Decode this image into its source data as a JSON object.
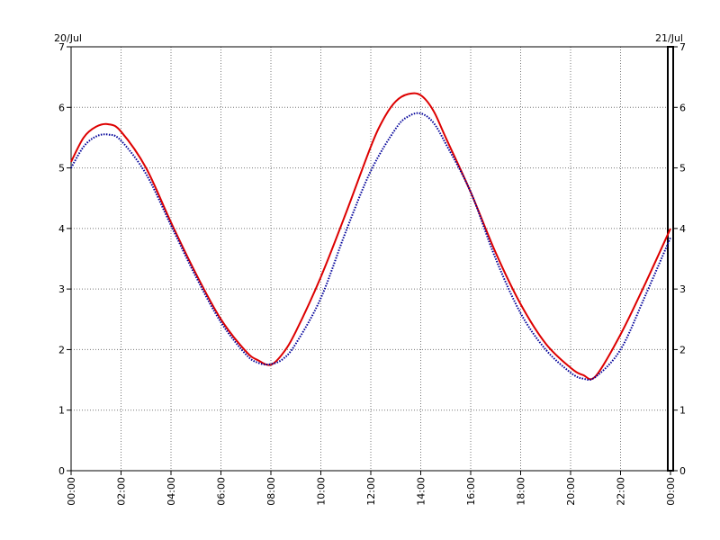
{
  "chart_data": {
    "type": "line",
    "title": "",
    "xlabel": "",
    "ylabel": "",
    "date_labels": {
      "start": "20/Jul",
      "end": "21/Jul"
    },
    "x_ticks": [
      "00:00",
      "02:00",
      "04:00",
      "06:00",
      "08:00",
      "10:00",
      "12:00",
      "14:00",
      "16:00",
      "18:00",
      "20:00",
      "22:00",
      "00:00"
    ],
    "x_range_hours": [
      0,
      24
    ],
    "ylim": [
      0,
      7
    ],
    "y_ticks": [
      "0",
      "1",
      "2",
      "3",
      "4",
      "5",
      "6",
      "7"
    ],
    "grid": true,
    "series": [
      {
        "color": "#dd0000",
        "style": "solid",
        "x_hours": [
          0,
          0.5,
          1,
          1.5,
          2,
          3,
          4,
          5,
          6,
          7,
          7.5,
          8,
          8.5,
          9,
          10,
          11,
          12,
          12.5,
          13,
          13.5,
          14,
          14.5,
          15,
          16,
          17,
          18,
          19,
          20,
          20.5,
          21,
          22,
          23,
          24
        ],
        "values": [
          5.1,
          5.5,
          5.68,
          5.72,
          5.6,
          5.0,
          4.1,
          3.25,
          2.5,
          1.97,
          1.82,
          1.75,
          1.95,
          2.3,
          3.2,
          4.25,
          5.35,
          5.8,
          6.1,
          6.22,
          6.2,
          5.95,
          5.5,
          4.6,
          3.6,
          2.75,
          2.1,
          1.7,
          1.58,
          1.56,
          2.25,
          3.1,
          4.0
        ]
      },
      {
        "color": "#000099",
        "style": "dotted",
        "x_hours": [
          0,
          0.5,
          1,
          1.5,
          2,
          3,
          4,
          5,
          6,
          7,
          7.5,
          8,
          8.5,
          9,
          10,
          11,
          12,
          13,
          13.5,
          14,
          14.5,
          15,
          16,
          17,
          18,
          19,
          20,
          20.5,
          21,
          22,
          23,
          24
        ],
        "values": [
          5.0,
          5.35,
          5.52,
          5.55,
          5.45,
          4.9,
          4.05,
          3.2,
          2.45,
          1.92,
          1.78,
          1.76,
          1.85,
          2.1,
          2.85,
          3.95,
          4.95,
          5.65,
          5.85,
          5.9,
          5.75,
          5.4,
          4.6,
          3.5,
          2.6,
          2.0,
          1.62,
          1.52,
          1.55,
          2.0,
          2.9,
          3.85
        ]
      }
    ]
  }
}
